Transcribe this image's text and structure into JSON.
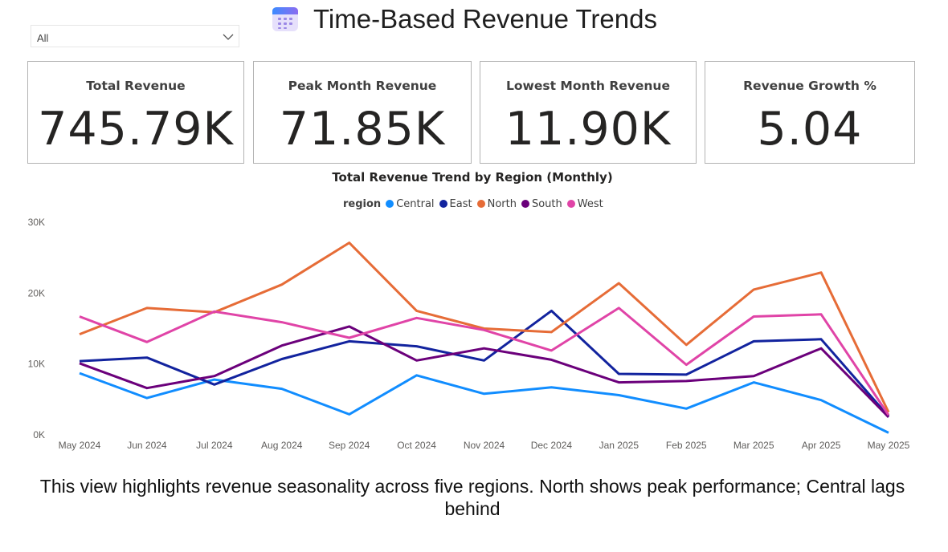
{
  "header": {
    "title": "Time-Based Revenue Trends",
    "icon": "calendar-icon"
  },
  "slicer": {
    "value": "All"
  },
  "cards": [
    {
      "label": "Total Revenue",
      "value": "745.79K"
    },
    {
      "label": "Peak Month Revenue",
      "value": "71.85K"
    },
    {
      "label": "Lowest Month Revenue",
      "value": "11.90K"
    },
    {
      "label": "Revenue Growth %",
      "value": "5.04"
    }
  ],
  "chart_data": {
    "type": "line",
    "title": "Total Revenue Trend by Region (Monthly)",
    "legend_title": "region",
    "legend_position": "top-center",
    "x": [
      "May 2024",
      "Jun 2024",
      "Jul 2024",
      "Aug 2024",
      "Sep 2024",
      "Oct 2024",
      "Nov 2024",
      "Dec 2024",
      "Jan 2025",
      "Feb 2025",
      "Mar 2025",
      "Apr 2025",
      "May 2025"
    ],
    "y_ticks": [
      "0K",
      "10K",
      "20K",
      "30K"
    ],
    "ylim": [
      0,
      30000
    ],
    "grid": false,
    "series": [
      {
        "name": "Central",
        "color": "#118DFF",
        "values": [
          8700,
          5200,
          7800,
          6500,
          2900,
          8400,
          5800,
          6700,
          5600,
          3700,
          7400,
          4900,
          300
        ]
      },
      {
        "name": "East",
        "color": "#12239E",
        "values": [
          10400,
          10900,
          7100,
          10700,
          13200,
          12500,
          10500,
          17500,
          8600,
          8500,
          13200,
          13500,
          2600
        ]
      },
      {
        "name": "North",
        "color": "#E66C37",
        "values": [
          14200,
          17900,
          17300,
          21200,
          27100,
          17500,
          15000,
          14500,
          21400,
          12700,
          20500,
          22900,
          3200
        ]
      },
      {
        "name": "South",
        "color": "#6B007B",
        "values": [
          10100,
          6600,
          8300,
          12600,
          15300,
          10500,
          12200,
          10600,
          7400,
          7600,
          8300,
          12200,
          2500
        ]
      },
      {
        "name": "West",
        "color": "#E044A7",
        "values": [
          16700,
          13100,
          17400,
          15900,
          13700,
          16500,
          14800,
          11900,
          17900,
          9900,
          16700,
          17000,
          2800
        ]
      }
    ]
  },
  "caption": "This view highlights revenue seasonality across five regions. North shows peak performance; Central lags behind"
}
